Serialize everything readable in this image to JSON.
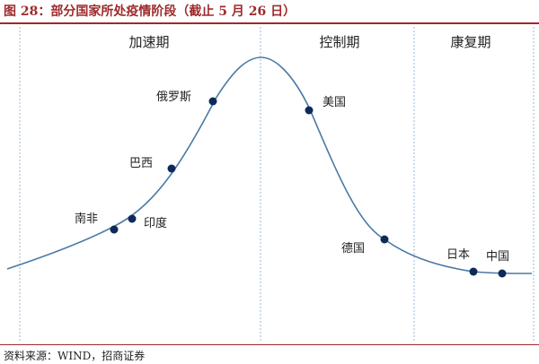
{
  "figure": {
    "title": "图 28：部分国家所处疫情阶段（截止 5 月 26 日）",
    "source": "资料来源：WIND，招商证券"
  },
  "phases": [
    {
      "label": "加速期"
    },
    {
      "label": "控制期"
    },
    {
      "label": "康复期"
    }
  ],
  "countries": [
    {
      "name": "南非"
    },
    {
      "name": "印度"
    },
    {
      "name": "巴西"
    },
    {
      "name": "俄罗斯"
    },
    {
      "name": "美国"
    },
    {
      "name": "德国"
    },
    {
      "name": "日本"
    },
    {
      "name": "中国"
    }
  ],
  "colors": {
    "title": "#9e2a2b",
    "curve": "#4a7aa6",
    "dots": "#0f2a5a",
    "dividers": "#9ab8d4"
  }
}
